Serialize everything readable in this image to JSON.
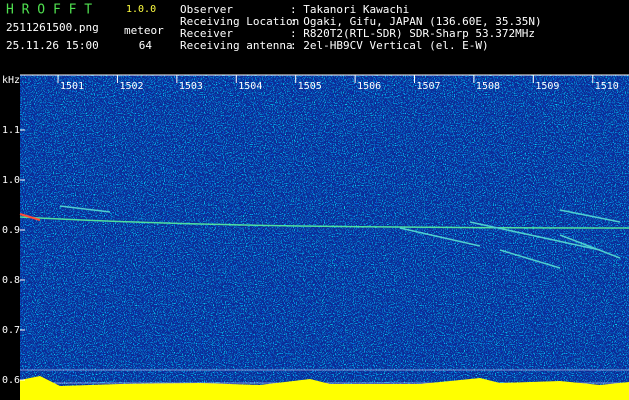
{
  "chart_data": {
    "type": "spectrogram",
    "y_label": "kHz",
    "ylim": [
      0.56,
      1.21
    ],
    "yticks": [
      0.6,
      0.7,
      0.8,
      0.9,
      {
        "value": 1,
        "label": "1.0"
      },
      1.1
    ],
    "xlim": [
      1500.36,
      1510.61
    ],
    "xticks": [
      1501,
      1502,
      1503,
      1504,
      1505,
      1506,
      1507,
      1508,
      1509,
      1510
    ]
  },
  "header": {
    "app_name": "H R O F F T",
    "version": "1.0.0",
    "filename": "2511261500.png",
    "timestamp": "25.11.26 15:00",
    "meteor_label": "meteor",
    "meteor_count": "64",
    "info": [
      {
        "key": "Observer",
        "value": ": Takanori Kawachi"
      },
      {
        "key": "Receiving Location",
        "value": ": Ogaki, Gifu, JAPAN (136.60E, 35.35N)"
      },
      {
        "key": "Receiver",
        "value": ": R820T2(RTL-SDR) SDR-Sharp 53.372MHz"
      },
      {
        "key": "Receiving antenna",
        "value": ": 2el-HB9CV Vertical (el. E-W)"
      }
    ]
  }
}
